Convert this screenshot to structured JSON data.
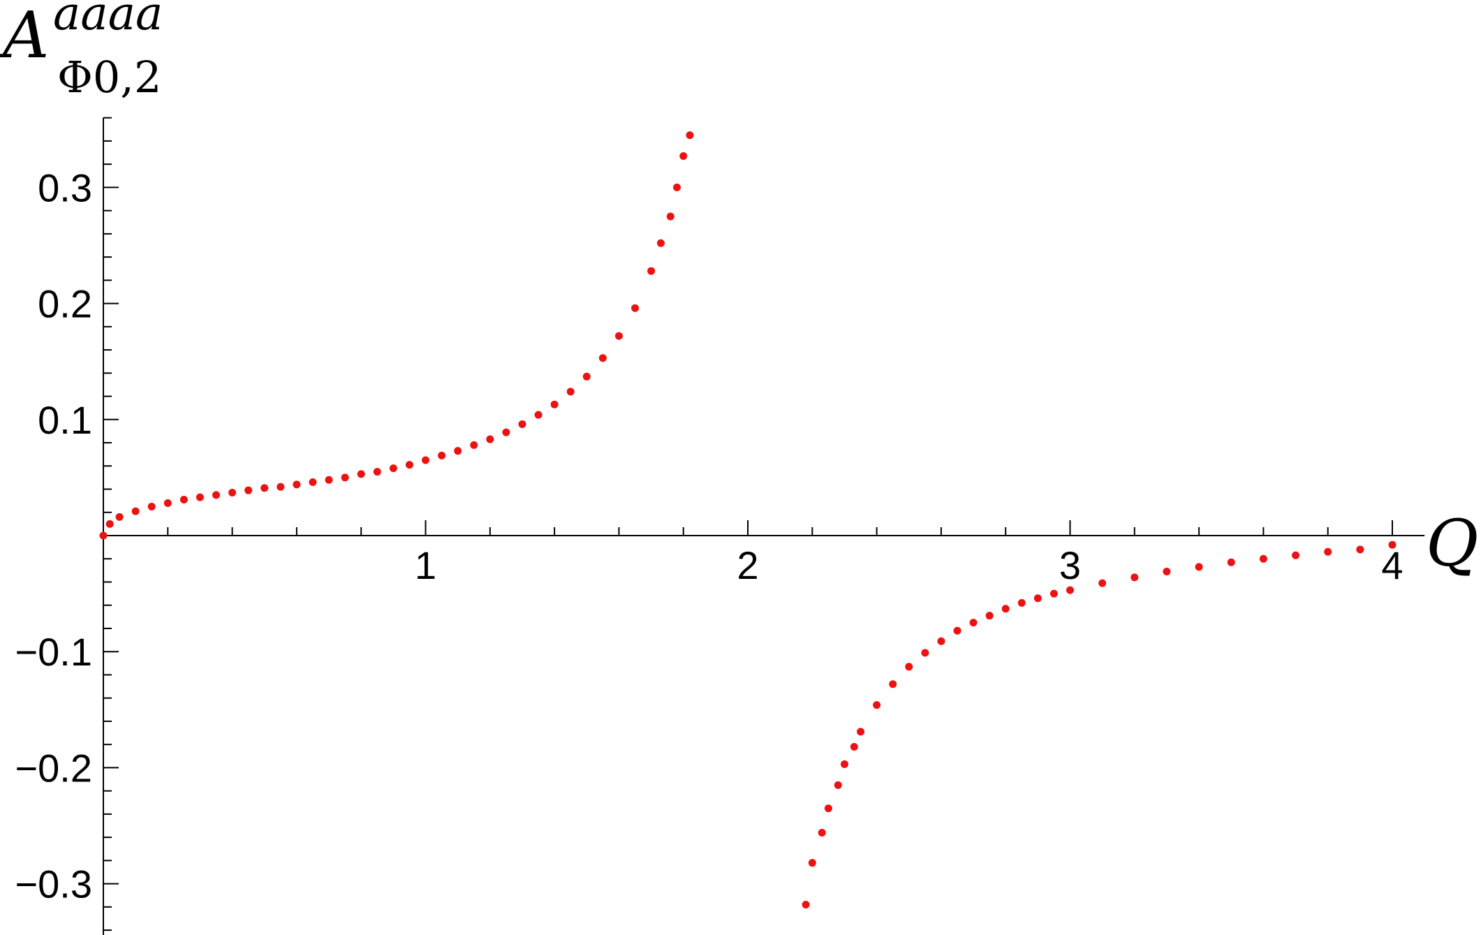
{
  "chart_data": {
    "type": "scatter",
    "title": "",
    "ylabel": {
      "base": "A",
      "superscript": "aaaa",
      "subscript": "Φ0,2"
    },
    "xlabel": "Q",
    "xlim": [
      0,
      4.1
    ],
    "ylim": [
      -0.35,
      0.36
    ],
    "x_ticks": [
      {
        "value": 1,
        "label": "1"
      },
      {
        "value": 2,
        "label": "2"
      },
      {
        "value": 3,
        "label": "3"
      },
      {
        "value": 4,
        "label": "4"
      }
    ],
    "y_ticks": [
      {
        "value": 0.3,
        "label": "0.3"
      },
      {
        "value": 0.2,
        "label": "0.2"
      },
      {
        "value": 0.1,
        "label": "0.1"
      },
      {
        "value": -0.1,
        "label": "−0.1"
      },
      {
        "value": -0.2,
        "label": "−0.2"
      },
      {
        "value": -0.3,
        "label": "−0.3"
      }
    ],
    "grid": false,
    "marker_color": "#ee1111",
    "series": [
      {
        "points": [
          [
            0.0,
            0.0
          ],
          [
            0.02,
            0.01
          ],
          [
            0.05,
            0.016
          ],
          [
            0.1,
            0.021
          ],
          [
            0.15,
            0.025
          ],
          [
            0.2,
            0.028
          ],
          [
            0.25,
            0.031
          ],
          [
            0.3,
            0.033
          ],
          [
            0.35,
            0.035
          ],
          [
            0.4,
            0.037
          ],
          [
            0.45,
            0.039
          ],
          [
            0.5,
            0.041
          ],
          [
            0.55,
            0.042
          ],
          [
            0.6,
            0.044
          ],
          [
            0.65,
            0.046
          ],
          [
            0.7,
            0.048
          ],
          [
            0.75,
            0.05
          ],
          [
            0.8,
            0.053
          ],
          [
            0.85,
            0.055
          ],
          [
            0.9,
            0.058
          ],
          [
            0.95,
            0.061
          ],
          [
            1.0,
            0.065
          ],
          [
            1.05,
            0.069
          ],
          [
            1.1,
            0.073
          ],
          [
            1.15,
            0.078
          ],
          [
            1.2,
            0.083
          ],
          [
            1.25,
            0.089
          ],
          [
            1.3,
            0.096
          ],
          [
            1.35,
            0.104
          ],
          [
            1.4,
            0.113
          ],
          [
            1.45,
            0.124
          ],
          [
            1.5,
            0.137
          ],
          [
            1.55,
            0.153
          ],
          [
            1.6,
            0.172
          ],
          [
            1.65,
            0.196
          ],
          [
            1.7,
            0.228
          ],
          [
            1.73,
            0.252
          ],
          [
            1.76,
            0.275
          ],
          [
            1.78,
            0.3
          ],
          [
            1.8,
            0.327
          ],
          [
            1.82,
            0.345
          ]
        ]
      },
      {
        "points": [
          [
            2.18,
            -0.318
          ],
          [
            2.2,
            -0.282
          ],
          [
            2.23,
            -0.256
          ],
          [
            2.25,
            -0.235
          ],
          [
            2.28,
            -0.215
          ],
          [
            2.3,
            -0.197
          ],
          [
            2.33,
            -0.182
          ],
          [
            2.35,
            -0.169
          ],
          [
            2.4,
            -0.146
          ],
          [
            2.45,
            -0.128
          ],
          [
            2.5,
            -0.113
          ],
          [
            2.55,
            -0.101
          ],
          [
            2.6,
            -0.091
          ],
          [
            2.65,
            -0.082
          ],
          [
            2.7,
            -0.075
          ],
          [
            2.75,
            -0.069
          ],
          [
            2.8,
            -0.063
          ],
          [
            2.85,
            -0.058
          ],
          [
            2.9,
            -0.054
          ],
          [
            2.95,
            -0.05
          ],
          [
            3.0,
            -0.047
          ],
          [
            3.1,
            -0.041
          ],
          [
            3.2,
            -0.036
          ],
          [
            3.3,
            -0.031
          ],
          [
            3.4,
            -0.027
          ],
          [
            3.5,
            -0.023
          ],
          [
            3.6,
            -0.02
          ],
          [
            3.7,
            -0.017
          ],
          [
            3.8,
            -0.014
          ],
          [
            3.9,
            -0.012
          ],
          [
            4.0,
            -0.008
          ]
        ]
      }
    ]
  }
}
